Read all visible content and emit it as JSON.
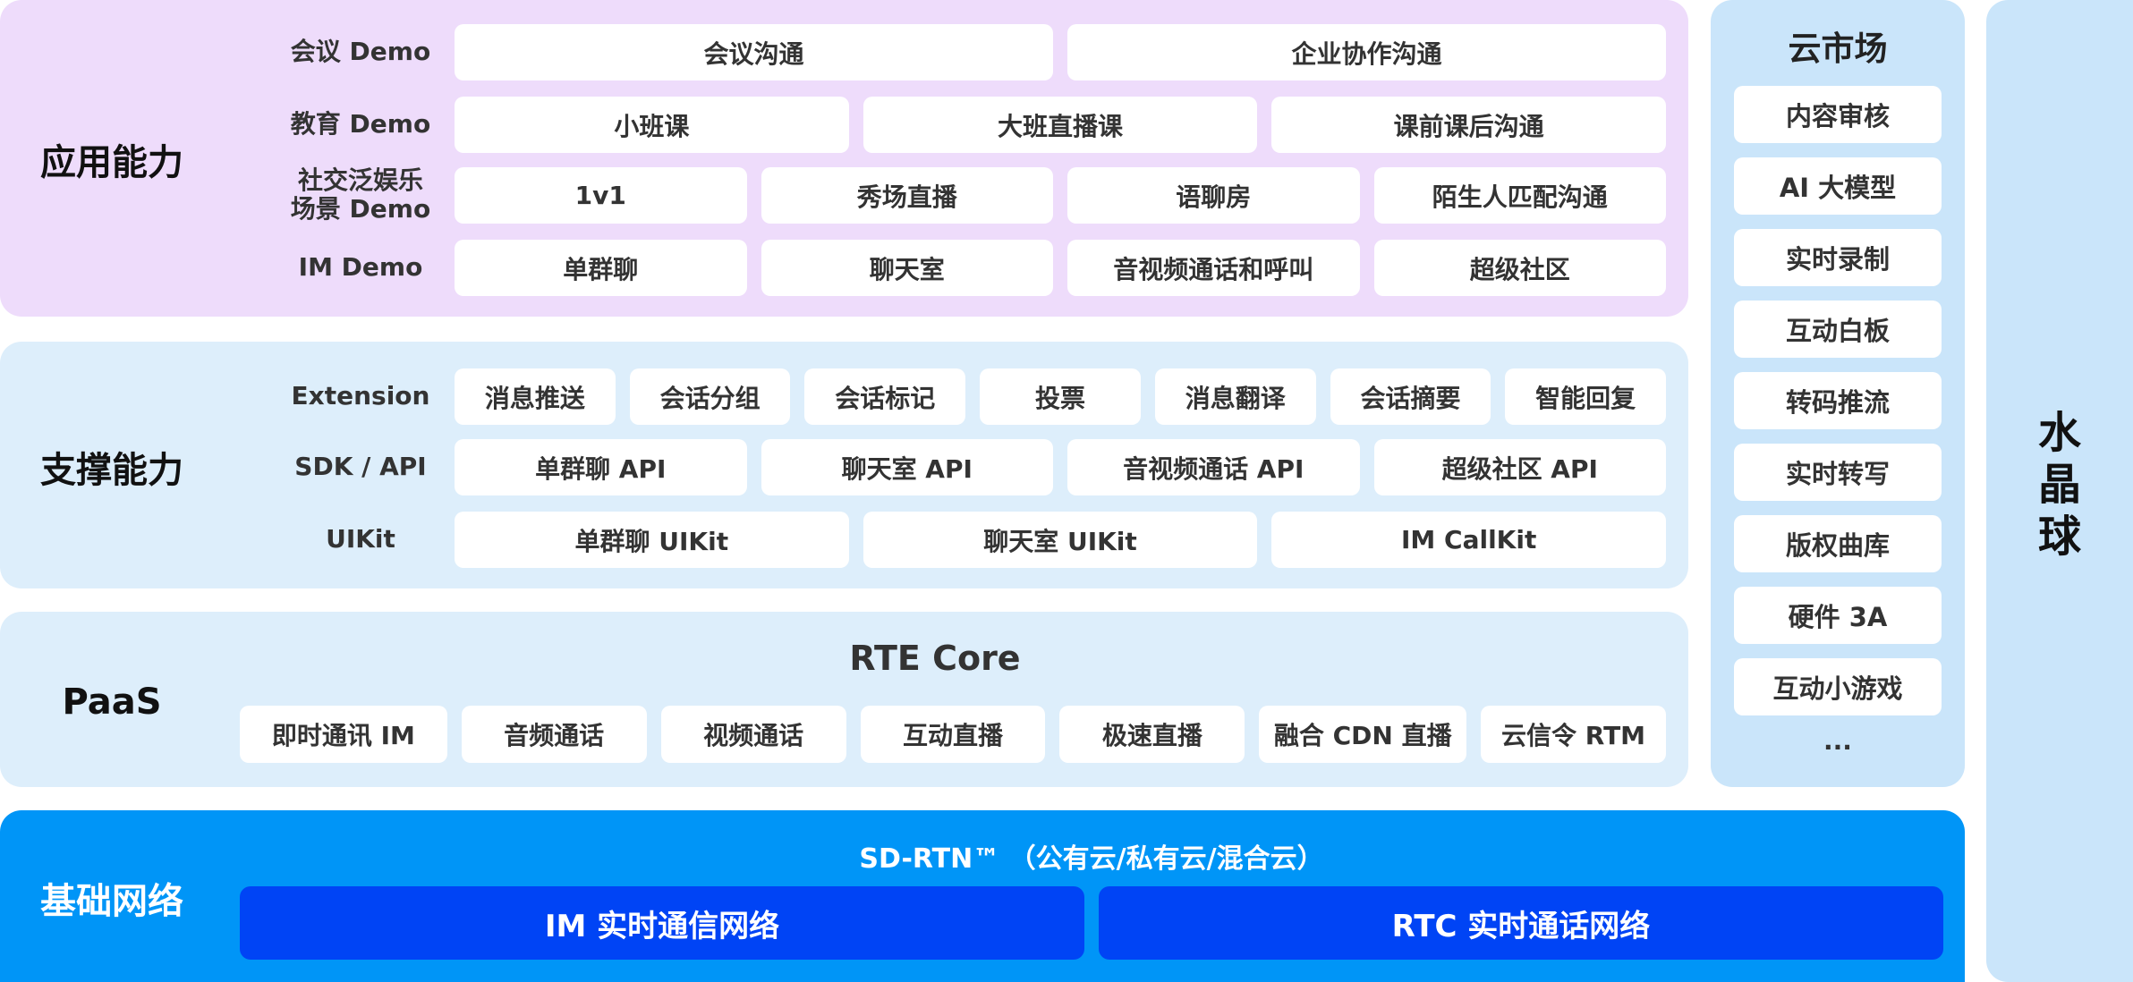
{
  "colors": {
    "app_bg": "#eedcfb",
    "support_bg": "#ddeefb",
    "paas_bg": "#ddeefb",
    "market_bg": "#cae5fa",
    "crystal_bg": "#cae5fa",
    "network_bg": "#0095f7",
    "network_cell": "#0044f5"
  },
  "app": {
    "title": "应用能力",
    "rows": [
      {
        "label": "会议 Demo",
        "cells": [
          "会议沟通",
          "企业协作沟通"
        ]
      },
      {
        "label": "教育 Demo",
        "cells": [
          "小班课",
          "大班直播课",
          "课前课后沟通"
        ]
      },
      {
        "label": "社交泛娱乐\n场景 Demo",
        "cells": [
          "1v1",
          "秀场直播",
          "语聊房",
          "陌生人匹配沟通"
        ]
      },
      {
        "label": "IM Demo",
        "cells": [
          "单群聊",
          "聊天室",
          "音视频通话和呼叫",
          "超级社区"
        ]
      }
    ]
  },
  "support": {
    "title": "支撑能力",
    "rows": [
      {
        "label": "Extension",
        "cells": [
          "消息推送",
          "会话分组",
          "会话标记",
          "投票",
          "消息翻译",
          "会话摘要",
          "智能回复"
        ]
      },
      {
        "label": "SDK / API",
        "cells": [
          "单群聊 API",
          "聊天室 API",
          "音视频通话 API",
          "超级社区 API"
        ]
      },
      {
        "label": "UIKit",
        "cells": [
          "单群聊 UIKit",
          "聊天室 UIKit",
          "IM CallKit"
        ]
      }
    ]
  },
  "paas": {
    "title": "PaaS",
    "core_title": "RTE Core",
    "cells": [
      "即时通讯 IM",
      "音频通话",
      "视频通话",
      "互动直播",
      "极速直播",
      "融合 CDN 直播",
      "云信令 RTM"
    ]
  },
  "network": {
    "title": "基础网络",
    "subtitle": "SD-RTN™ （公有云/私有云/混合云）",
    "cells": [
      "IM 实时通信网络",
      "RTC 实时通话网络"
    ]
  },
  "market": {
    "title": "云市场",
    "items": [
      "内容审核",
      "AI 大模型",
      "实时录制",
      "互动白板",
      "转码推流",
      "实时转写",
      "版权曲库",
      "硬件 3A",
      "互动小游戏"
    ],
    "more": "..."
  },
  "crystal": {
    "title": "水晶球"
  }
}
